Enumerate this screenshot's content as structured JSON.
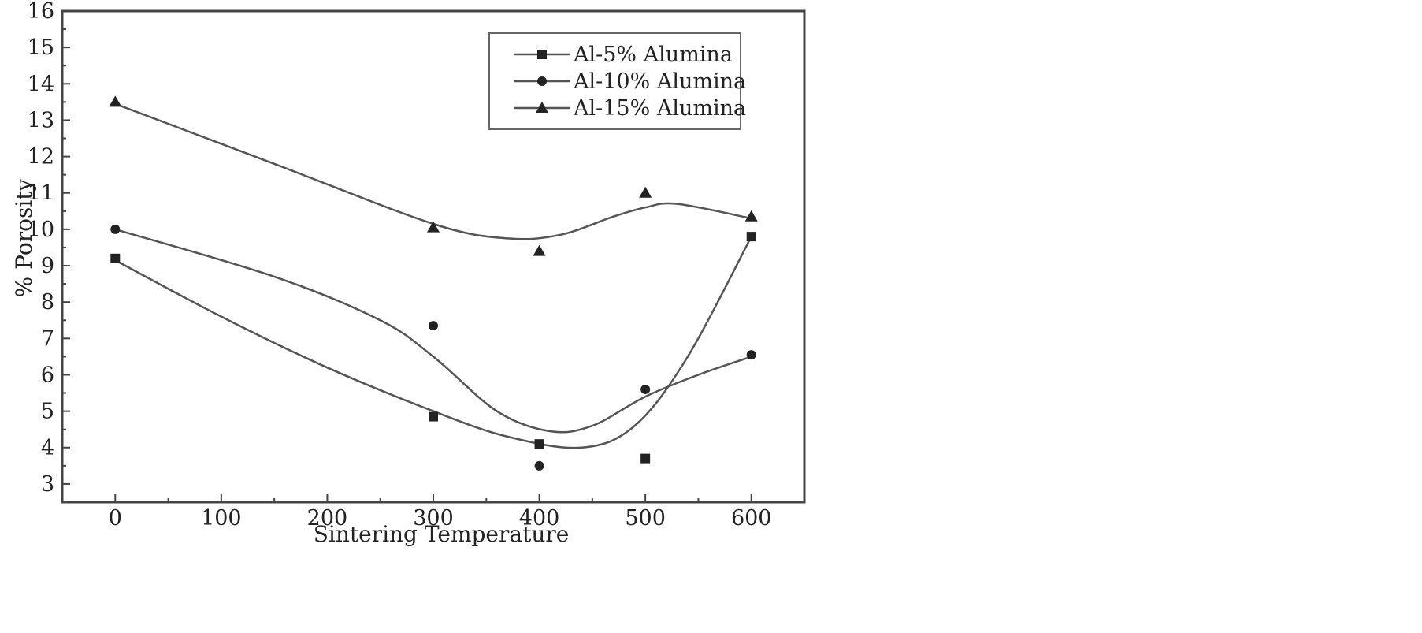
{
  "chart_data": {
    "type": "scatter",
    "title": "",
    "xlabel": "Sintering Temperature",
    "ylabel": "% Porosity",
    "xlim": [
      -50,
      650
    ],
    "ylim": [
      2.5,
      16
    ],
    "xticks": [
      0,
      100,
      200,
      300,
      400,
      500,
      600
    ],
    "yticks": [
      3,
      4,
      5,
      6,
      7,
      8,
      9,
      10,
      11,
      12,
      13,
      14,
      15,
      16
    ],
    "grid": false,
    "legend_position": "top-right",
    "series": [
      {
        "name": "Al-5% Alumina",
        "marker": "square",
        "color": "#222222",
        "x": [
          0,
          300,
          400,
          500,
          600
        ],
        "y": [
          9.2,
          4.85,
          4.1,
          3.7,
          9.8
        ],
        "curve": [
          [
            0,
            9.15
          ],
          [
            100,
            7.6
          ],
          [
            200,
            6.2
          ],
          [
            300,
            5.0
          ],
          [
            370,
            4.3
          ],
          [
            440,
            4.0
          ],
          [
            490,
            4.6
          ],
          [
            540,
            6.5
          ],
          [
            600,
            9.8
          ]
        ]
      },
      {
        "name": "Al-10% Alumina",
        "marker": "circle",
        "color": "#222222",
        "x": [
          0,
          300,
          400,
          500,
          600
        ],
        "y": [
          10.0,
          7.35,
          3.5,
          5.6,
          6.55
        ],
        "curve": [
          [
            0,
            10.0
          ],
          [
            150,
            8.7
          ],
          [
            250,
            7.5
          ],
          [
            300,
            6.5
          ],
          [
            360,
            5.0
          ],
          [
            410,
            4.45
          ],
          [
            450,
            4.6
          ],
          [
            500,
            5.4
          ],
          [
            550,
            6.0
          ],
          [
            600,
            6.5
          ]
        ]
      },
      {
        "name": "Al-15% Alumina",
        "marker": "triangle",
        "color": "#222222",
        "x": [
          0,
          300,
          400,
          500,
          600
        ],
        "y": [
          13.5,
          10.05,
          9.4,
          11.0,
          10.35
        ],
        "curve": [
          [
            0,
            13.45
          ],
          [
            150,
            11.8
          ],
          [
            300,
            10.15
          ],
          [
            370,
            9.75
          ],
          [
            420,
            9.85
          ],
          [
            470,
            10.35
          ],
          [
            500,
            10.6
          ],
          [
            530,
            10.7
          ],
          [
            600,
            10.3
          ]
        ]
      }
    ]
  }
}
